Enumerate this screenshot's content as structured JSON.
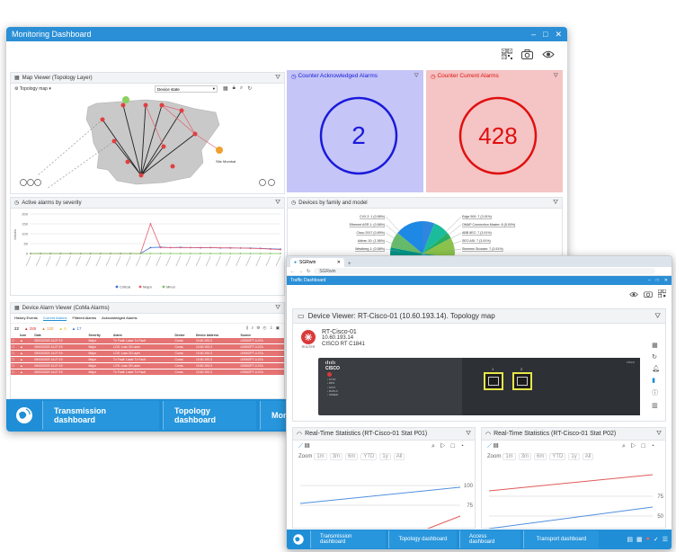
{
  "main_window": {
    "title": "Monitoring Dashboard",
    "controls": [
      "–",
      "□",
      "✕"
    ],
    "bottom_tabs": [
      "Transmission dashboard",
      "Topology dashboard",
      "Monito"
    ]
  },
  "map_viewer": {
    "title": "Map Viewer (Topology Layer)",
    "layer_label": "Topology map",
    "select_value": "Device state",
    "legend_label": "Site Mumbai"
  },
  "counter_ack": {
    "title": "Counter Acknowledged Alarms",
    "value": "2",
    "color": "#1a1adb",
    "bg": "#c5c5f7"
  },
  "counter_cur": {
    "title": "Counter Current Alarms",
    "value": "428",
    "color": "#e01010",
    "bg": "#f5c4c4"
  },
  "active_alarms": {
    "title": "Active alarms by severity",
    "ylabel": "Values",
    "legend": [
      "Critical",
      "Major",
      "Minor"
    ]
  },
  "chart_data": [
    {
      "type": "line",
      "title": "Active alarms by severity",
      "ylabel": "Values",
      "ylim": [
        0,
        200
      ],
      "y_ticks": [
        "200",
        "150",
        "100",
        "50",
        "0"
      ],
      "series": [
        {
          "name": "Critical",
          "color": "#3b6fd6",
          "values": [
            0,
            0,
            0,
            0,
            0,
            0,
            0,
            0,
            0,
            0,
            0,
            0,
            30,
            32,
            30,
            31,
            30,
            29,
            30,
            28,
            29,
            28,
            27,
            26,
            24,
            22
          ]
        },
        {
          "name": "Major",
          "color": "#e65c6e",
          "values": [
            0,
            0,
            0,
            0,
            0,
            0,
            0,
            0,
            0,
            0,
            0,
            0,
            150,
            30,
            30,
            30,
            30,
            30,
            30,
            29,
            28,
            28,
            26,
            25,
            22,
            20
          ]
        },
        {
          "name": "Minor",
          "color": "#7cc35b",
          "values": [
            0,
            0,
            0,
            0,
            0,
            0,
            0,
            0,
            0,
            0,
            0,
            0,
            0,
            0,
            0,
            0,
            0,
            0,
            0,
            0,
            0,
            0,
            0,
            0,
            0,
            0
          ]
        }
      ]
    },
    {
      "type": "pie",
      "title": "Devices by family and model",
      "labels": [
        "CVX 2: 1 (0.58%)",
        "Ethernet ASR 1: (0.58%)",
        "Cisco 2917 (0.89%)",
        "Adtran 10: (1.56%)",
        "Westberg 1: (0.58%)",
        "Virtual: 4 (2.93%)",
        "Edge 500: 7 (3.91%)",
        "OMAP Connection Master: 8 (5.00%)",
        "ABB 8EC: 7 (3.91%)",
        "SEO ASI: 7 (3.91%)",
        "Siemens Sicoram: 7 (3.91%)",
        "Alcatel/Lucent: 9 (5.03%)"
      ]
    }
  ],
  "devices_panel": {
    "title": "Devices by family and model"
  },
  "alarm_viewer": {
    "title": "Device Alarm Viewer (CoMa Alarms)",
    "tabs": [
      "History Events",
      "Current Alarms",
      "Filtered Alarms",
      "Acknowledged Alarms"
    ],
    "counts": [
      "22",
      "285",
      "120",
      "6",
      "17"
    ],
    "columns": [
      "",
      "Icon",
      "Date",
      "Severity",
      "Alarm",
      "Device",
      "Device Address",
      "Source"
    ],
    "rows": [
      [
        "",
        "",
        "05/03/2023 14:27:19",
        "Major",
        "Tx Fault: Laser Tx Fault",
        "Coma",
        "10.60.193.3",
        "LBS6OPT-4-07A"
      ],
      [
        "",
        "",
        "05/03/2023 14:27:19",
        "Major",
        "LOS: Loss Of Laser",
        "Coma",
        "10.60.193.3",
        "LBS6OPT-4-07A"
      ],
      [
        "",
        "",
        "05/03/2023 14:27:19",
        "Major",
        "LOS: Loss Of Layer",
        "Coma",
        "10.60.193.3",
        "LBS6OPT-4-07A"
      ],
      [
        "",
        "",
        "05/03/2023 14:27:19",
        "Major",
        "Tx Fault: Laser Tx Fault",
        "Coma",
        "10.60.193.3",
        "LBS6OPT-4-07A"
      ],
      [
        "",
        "",
        "05/03/2023 14:27:19",
        "Major",
        "LOS: Loss Of Laser",
        "Coma",
        "10.60.193.3",
        "LBS6OPT-4-07A"
      ],
      [
        "",
        "",
        "05/03/2023 14:27:19",
        "Major",
        "Tx Fault: Laser Tx Fault",
        "Coma",
        "10.60.193.3",
        "LBS6OPT-4-07A"
      ]
    ]
  },
  "traffic_window": {
    "browser_tab": "SGRwin",
    "address": "SGRwin",
    "title": "Traffic Dashboard",
    "device_viewer_title": "Device Viewer: RT-Cisco-01 (10.60.193.14). Topology map",
    "device_name": "RT-Cisco-01",
    "device_ip": "10.60.193.14",
    "device_model": "CISCO RT C1841",
    "device_tag": "ROUTER",
    "chassis_label": "CISCO",
    "chassis_brand": "cisco",
    "port_labels": [
      "1",
      "2"
    ],
    "status_labels": [
      "SYST",
      "RPS",
      "STAT",
      "DUPLX",
      "SPEED"
    ],
    "rt1_title": "Real-Time Statistics (RT-Cisco-01 Stat P01)",
    "rt2_title": "Real-Time Statistics (RT-Cisco-01 Stat P02)",
    "zoom_label": "Zoom",
    "zoom_options": [
      "1m",
      "3m",
      "6m",
      "YTD",
      "1y",
      "All"
    ],
    "rt1_ticks": [
      "100",
      "75"
    ],
    "rt2_ticks": [
      "75",
      "50"
    ],
    "bottom_tabs": [
      "Transmission dashboard",
      "Topology dashboard",
      "Access dashboard",
      "Transport dashboard"
    ]
  }
}
